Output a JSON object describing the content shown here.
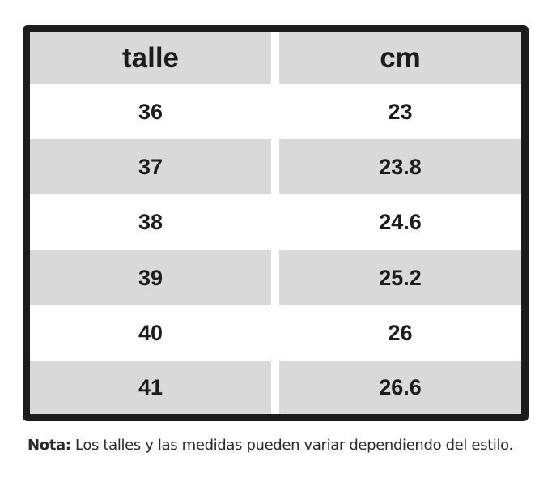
{
  "table": {
    "headers": [
      "talle",
      "cm"
    ],
    "rows": [
      [
        "36",
        "23"
      ],
      [
        "37",
        "23.8"
      ],
      [
        "38",
        "24.6"
      ],
      [
        "39",
        "25.2"
      ],
      [
        "40",
        "26"
      ],
      [
        "41",
        "26.6"
      ]
    ],
    "colors": {
      "border": "#1c1c1c",
      "shaded_fill": "#d9d9d9",
      "plain_fill": "#ffffff",
      "text": "#1c1c1c"
    }
  },
  "note": {
    "label": "Nota:",
    "text": " Los talles y las medidas pueden variar dependiendo del estilo."
  }
}
